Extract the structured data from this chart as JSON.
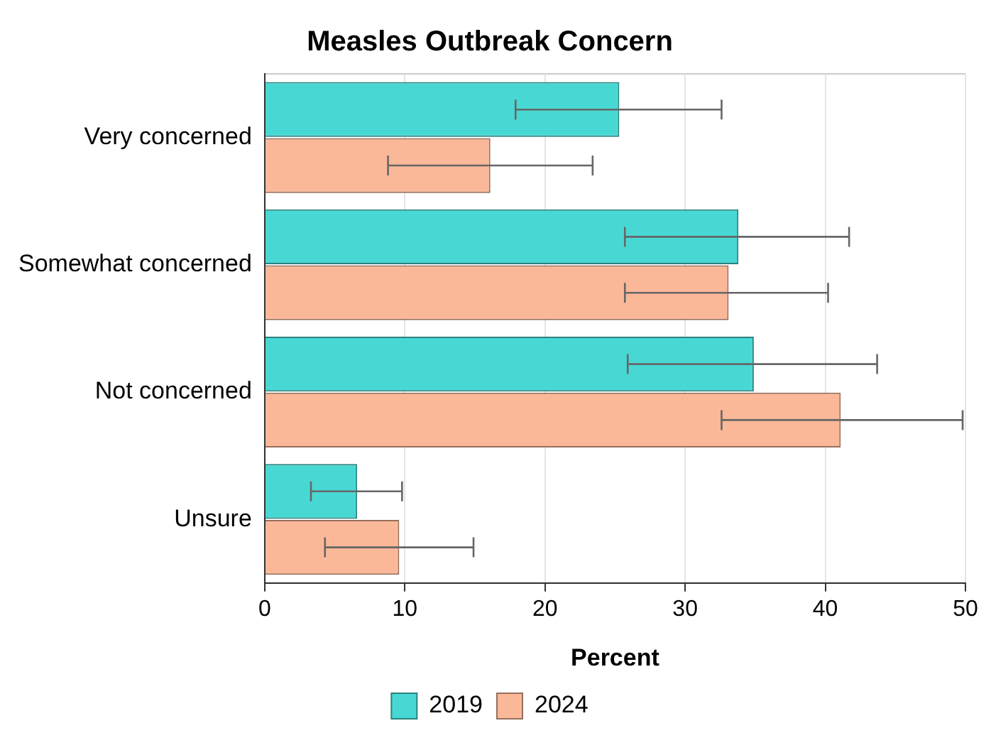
{
  "chart_data": {
    "type": "bar",
    "orientation": "horizontal",
    "title": "Measles Outbreak Concern",
    "xlabel": "Percent",
    "categories": [
      "Very concerned",
      "Somewhat concerned",
      "Not concerned",
      "Unsure"
    ],
    "series": [
      {
        "name": "2019",
        "color": "#48d8d4",
        "values": [
          25.3,
          33.8,
          34.9,
          6.6
        ],
        "errors": [
          [
            17.9,
            32.6
          ],
          [
            25.7,
            41.7
          ],
          [
            25.9,
            43.7
          ],
          [
            3.3,
            9.8
          ]
        ]
      },
      {
        "name": "2024",
        "color": "#fbb898",
        "values": [
          16.1,
          33.1,
          41.1,
          9.6
        ],
        "errors": [
          [
            8.8,
            23.4
          ],
          [
            25.7,
            40.2
          ],
          [
            32.6,
            49.8
          ],
          [
            4.3,
            14.9
          ]
        ]
      }
    ],
    "xlim": [
      0,
      50
    ],
    "xticks": [
      0,
      10,
      20,
      30,
      40,
      50
    ],
    "grid": "x",
    "legend": "bottom"
  }
}
